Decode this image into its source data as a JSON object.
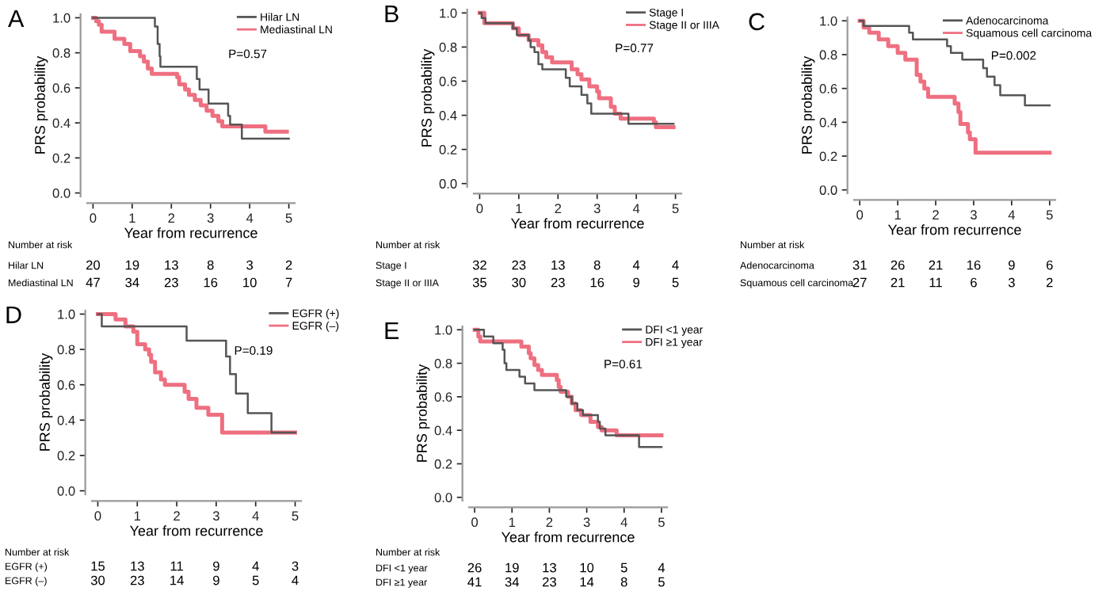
{
  "chart_data": [
    {
      "type": "step",
      "title": "A",
      "xlabel": "Year from recurrence",
      "ylabel": "PRS probability",
      "legend": "top right",
      "xlim": [
        -0.15,
        5.15
      ],
      "ylim": [
        -0.02,
        1.02
      ],
      "xticks": [
        0,
        1,
        2,
        3,
        4,
        5
      ],
      "yticks": [
        {
          "value": 0,
          "label": "0.0"
        },
        {
          "value": 0.2,
          "label": "0.2"
        },
        {
          "value": 0.4,
          "label": "0.4"
        },
        {
          "value": 0.6,
          "label": "0.6"
        },
        {
          "value": 0.8,
          "label": "0.8"
        },
        {
          "value": 1,
          "label": "1.0"
        }
      ],
      "series": [
        {
          "name": "Hilar LN",
          "color": "#555555",
          "x": [
            0,
            1.28,
            1.58,
            1.65,
            1.7,
            1.72,
            2.5,
            2.65,
            2.72,
            2.95,
            3.45,
            3.5,
            3.8,
            5.0
          ],
          "values": [
            1.0,
            1.0,
            0.95,
            0.85,
            0.78,
            0.72,
            0.72,
            0.65,
            0.59,
            0.51,
            0.44,
            0.39,
            0.31,
            0.31
          ]
        },
        {
          "name": "Mediastinal LN",
          "color": "#ee6f80",
          "x": [
            0,
            0.05,
            0.08,
            0.15,
            0.22,
            0.55,
            0.8,
            0.95,
            1.2,
            1.3,
            1.4,
            1.5,
            2.15,
            2.2,
            2.35,
            2.45,
            2.6,
            2.75,
            2.9,
            3.05,
            3.2,
            3.3,
            4.4,
            4.95
          ],
          "values": [
            1.0,
            1.0,
            0.98,
            0.96,
            0.92,
            0.88,
            0.85,
            0.81,
            0.78,
            0.75,
            0.71,
            0.68,
            0.66,
            0.62,
            0.59,
            0.56,
            0.53,
            0.5,
            0.47,
            0.44,
            0.41,
            0.38,
            0.35,
            0.35
          ]
        }
      ],
      "annotations": [
        "P=0.57",
        "Number at risk",
        "Hilar LN",
        "20",
        "19",
        "13",
        "8",
        "3",
        "2",
        "Mediastinal LN",
        "47",
        "34",
        "23",
        "16",
        "10",
        "7"
      ]
    },
    {
      "type": "step",
      "title": "B",
      "xlabel": "Year from recurrence",
      "ylabel": "PRS probability",
      "legend": "top right",
      "xlim": [
        -0.15,
        5.15
      ],
      "ylim": [
        -0.02,
        1.02
      ],
      "xticks": [
        0,
        1,
        2,
        3,
        4,
        5
      ],
      "yticks": [
        {
          "value": 0,
          "label": "0.0"
        },
        {
          "value": 0.2,
          "label": "0.2"
        },
        {
          "value": 0.4,
          "label": "0.4"
        },
        {
          "value": 0.6,
          "label": "0.6"
        },
        {
          "value": 0.8,
          "label": "0.8"
        },
        {
          "value": 1,
          "label": "1.0"
        }
      ],
      "series": [
        {
          "name": "Stage I",
          "color": "#555555",
          "x": [
            0,
            0.05,
            0.15,
            0.85,
            0.95,
            1.25,
            1.3,
            1.4,
            1.5,
            1.6,
            2.2,
            2.3,
            2.6,
            2.75,
            2.85,
            3.8,
            4.95
          ],
          "values": [
            1.0,
            0.97,
            0.94,
            0.91,
            0.87,
            0.84,
            0.8,
            0.77,
            0.7,
            0.67,
            0.62,
            0.57,
            0.52,
            0.47,
            0.41,
            0.35,
            0.35
          ]
        },
        {
          "name": "Stage II or IIIA",
          "color": "#ee6f80",
          "x": [
            0,
            0.12,
            0.85,
            1.0,
            1.25,
            1.5,
            1.6,
            1.7,
            1.85,
            2.35,
            2.5,
            2.6,
            2.8,
            3.0,
            3.05,
            3.35,
            3.45,
            3.6,
            4.45,
            4.5,
            4.95
          ],
          "values": [
            1.0,
            0.94,
            0.91,
            0.87,
            0.84,
            0.81,
            0.77,
            0.74,
            0.71,
            0.67,
            0.64,
            0.61,
            0.57,
            0.54,
            0.5,
            0.45,
            0.41,
            0.38,
            0.36,
            0.33,
            0.33
          ]
        }
      ],
      "annotations": [
        "P=0.77",
        "Number at risk",
        "Stage I",
        "32",
        "23",
        "13",
        "8",
        "4",
        "4",
        "Stage II or IIIA",
        "35",
        "30",
        "23",
        "16",
        "9",
        "5"
      ]
    },
    {
      "type": "step",
      "title": "C",
      "xlabel": "Year from recurrence",
      "ylabel": "PRS probability",
      "legend": "top right",
      "xlim": [
        -0.15,
        5.15
      ],
      "ylim": [
        -0.02,
        1.02
      ],
      "xticks": [
        0,
        1,
        2,
        3,
        4,
        5
      ],
      "yticks": [
        {
          "value": 0,
          "label": "0.0"
        },
        {
          "value": 0.2,
          "label": "0.2"
        },
        {
          "value": 0.4,
          "label": "0.4"
        },
        {
          "value": 0.6,
          "label": "0.6"
        },
        {
          "value": 0.8,
          "label": "0.8"
        },
        {
          "value": 1,
          "label": "1.0"
        }
      ],
      "series": [
        {
          "name": "Adenocarcinoma",
          "color": "#555555",
          "x": [
            0,
            0.1,
            1.3,
            1.4,
            2.3,
            2.4,
            2.7,
            3.25,
            3.35,
            3.55,
            3.7,
            4.35,
            5.0
          ],
          "values": [
            1.0,
            0.97,
            0.93,
            0.89,
            0.85,
            0.81,
            0.77,
            0.72,
            0.67,
            0.62,
            0.56,
            0.5,
            0.5
          ]
        },
        {
          "name": "Squamous cell carcinoma",
          "color": "#ee6f80",
          "x": [
            0,
            0.1,
            0.25,
            0.5,
            0.75,
            1.0,
            1.2,
            1.5,
            1.6,
            1.7,
            1.8,
            2.5,
            2.6,
            2.65,
            2.85,
            2.9,
            3.05,
            5.0
          ],
          "values": [
            1.0,
            0.96,
            0.93,
            0.89,
            0.85,
            0.81,
            0.77,
            0.68,
            0.64,
            0.6,
            0.55,
            0.51,
            0.46,
            0.39,
            0.34,
            0.3,
            0.22,
            0.22
          ]
        }
      ],
      "annotations": [
        "P=0.002",
        "Number at risk",
        "Adenocarcinoma",
        "31",
        "26",
        "21",
        "16",
        "9",
        "6",
        "Squamous cell carcinoma",
        "27",
        "21",
        "11",
        "6",
        "3",
        "2"
      ]
    },
    {
      "type": "step",
      "title": "D",
      "xlabel": "Year from recurrence",
      "ylabel": "PRS probability",
      "legend": "top right",
      "xlim": [
        -0.15,
        5.15
      ],
      "ylim": [
        -0.02,
        1.02
      ],
      "xticks": [
        0,
        1,
        2,
        3,
        4,
        5
      ],
      "yticks": [
        {
          "value": 0,
          "label": "0.0"
        },
        {
          "value": 0.2,
          "label": "0.2"
        },
        {
          "value": 0.4,
          "label": "0.4"
        },
        {
          "value": 0.6,
          "label": "0.6"
        },
        {
          "value": 0.8,
          "label": "0.8"
        },
        {
          "value": 1,
          "label": "1.0"
        }
      ],
      "series": [
        {
          "name": "EGFR (+)",
          "color": "#555555",
          "x": [
            0,
            0.1,
            2.25,
            3.25,
            3.35,
            3.5,
            3.8,
            4.4,
            5.0
          ],
          "values": [
            1.0,
            0.93,
            0.85,
            0.76,
            0.66,
            0.55,
            0.44,
            0.33,
            0.33
          ]
        },
        {
          "name": "EGFR (–)",
          "color": "#ee6f80",
          "x": [
            0,
            0.45,
            0.7,
            0.9,
            1.0,
            1.2,
            1.3,
            1.35,
            1.45,
            1.6,
            1.7,
            2.2,
            2.3,
            2.5,
            2.8,
            3.15,
            5.0
          ],
          "values": [
            1.0,
            0.97,
            0.93,
            0.9,
            0.83,
            0.8,
            0.77,
            0.73,
            0.67,
            0.63,
            0.6,
            0.56,
            0.52,
            0.47,
            0.43,
            0.33,
            0.33
          ]
        }
      ],
      "annotations": [
        "P=0.19",
        "Number at risk",
        "EGFR (+)",
        "15",
        "13",
        "11",
        "9",
        "4",
        "3",
        "EGFR (–)",
        "30",
        "23",
        "14",
        "9",
        "5",
        "4"
      ]
    },
    {
      "type": "step",
      "title": "E",
      "xlabel": "Year from recurrence",
      "ylabel": "PRS probability",
      "legend": "top right",
      "xlim": [
        -0.15,
        5.15
      ],
      "ylim": [
        -0.02,
        1.02
      ],
      "xticks": [
        0,
        1,
        2,
        3,
        4,
        5
      ],
      "yticks": [
        {
          "value": 0,
          "label": "0.0"
        },
        {
          "value": 0.2,
          "label": "0.2"
        },
        {
          "value": 0.4,
          "label": "0.4"
        },
        {
          "value": 0.6,
          "label": "0.6"
        },
        {
          "value": 0.8,
          "label": "0.8"
        },
        {
          "value": 1,
          "label": "1.0"
        }
      ],
      "series": [
        {
          "name": "DFI <1 year",
          "color": "#555555",
          "x": [
            0,
            0.25,
            0.5,
            0.75,
            0.8,
            0.85,
            1.2,
            1.35,
            1.6,
            2.45,
            2.6,
            2.75,
            2.9,
            3.3,
            3.35,
            3.5,
            4.4,
            5.0
          ],
          "values": [
            1.0,
            0.96,
            0.92,
            0.88,
            0.8,
            0.76,
            0.72,
            0.68,
            0.64,
            0.6,
            0.56,
            0.52,
            0.49,
            0.45,
            0.41,
            0.37,
            0.3,
            0.3
          ]
        },
        {
          "name": "DFI ≥1 year",
          "color": "#ee6f80",
          "x": [
            0,
            0.05,
            0.1,
            0.15,
            1.25,
            1.45,
            1.5,
            1.6,
            1.7,
            1.8,
            2.2,
            2.25,
            2.3,
            2.5,
            2.6,
            2.7,
            2.85,
            3.1,
            3.3,
            3.4,
            3.8,
            5.0
          ],
          "values": [
            1.0,
            1.0,
            0.96,
            0.93,
            0.9,
            0.86,
            0.83,
            0.79,
            0.76,
            0.73,
            0.7,
            0.66,
            0.63,
            0.6,
            0.56,
            0.52,
            0.49,
            0.45,
            0.42,
            0.4,
            0.37,
            0.37
          ]
        }
      ],
      "annotations": [
        "P=0.61",
        "Number at risk",
        "DFI <1 year",
        "26",
        "19",
        "13",
        "10",
        "5",
        "4",
        "DFI ≥1 year",
        "41",
        "34",
        "23",
        "14",
        "8",
        "5"
      ]
    }
  ]
}
